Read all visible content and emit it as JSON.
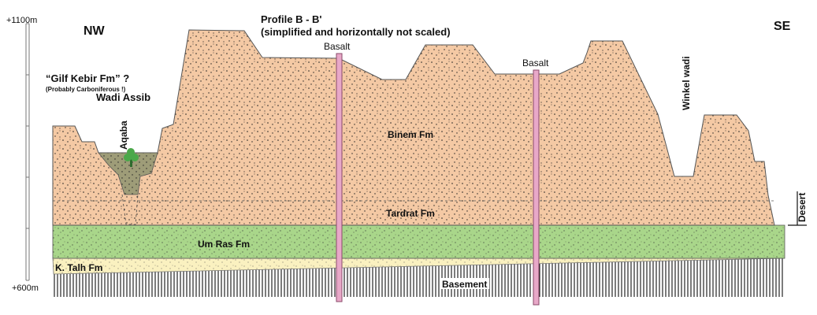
{
  "profile": {
    "title": "Profile B - B'",
    "subtitle": "(simplified and horizontally not scaled)",
    "orientation_left": "NW",
    "orientation_right": "SE"
  },
  "scale_bar": {
    "top_label": "+1100m",
    "bottom_label": "+600m"
  },
  "formations": {
    "binem": "Binem Fm",
    "tardrat": "Tardrat Fm",
    "um_ras": "Um Ras Fm",
    "k_talh": "K. Talh Fm",
    "basement": "Basement",
    "gilf_kebir": "“Gilf Kebir Fm” ?",
    "gilf_kebir_note": "(Probably Carboniferous !)"
  },
  "features": {
    "basalt_1": "Basalt",
    "basalt_2": "Basalt",
    "wadi_assib": "Wadi Assib",
    "aqaba": "Aqaba",
    "winkel_wadi": "Winkel wadi",
    "desert": "Desert"
  },
  "colors": {
    "binem_fill": "#f4c9a4",
    "um_ras_fill": "#a9d68a",
    "k_talh_fill": "#faf1c0",
    "gilf_fill": "#9e9c78",
    "basalt_fill": "#e8a8c8",
    "tree_green": "#4ba84a"
  }
}
